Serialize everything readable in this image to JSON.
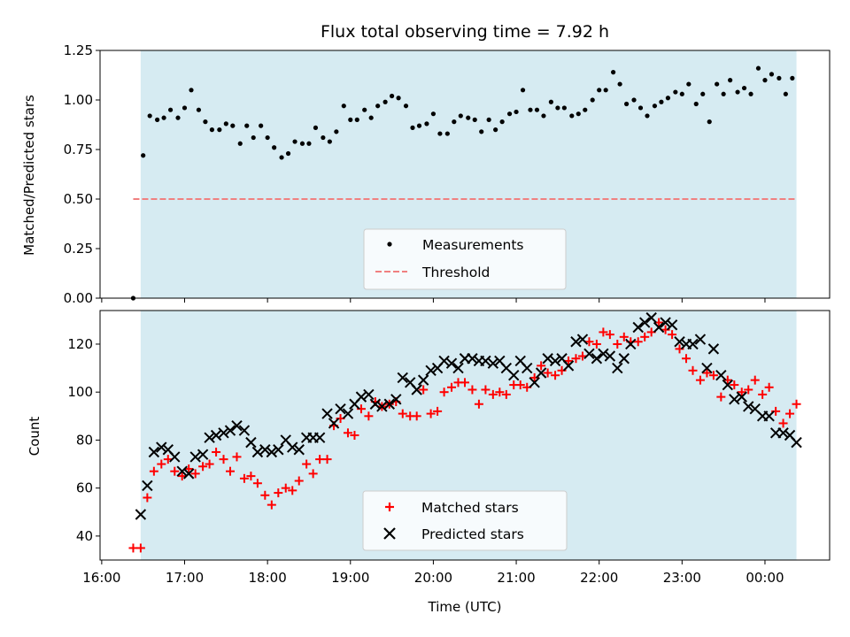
{
  "chart_data": [
    {
      "type": "scatter",
      "title": "Flux total observing time = 7.92 h",
      "xlabel": "",
      "ylabel": "Matched/Predicted stars",
      "ylim": [
        0,
        1.25
      ],
      "yticks": [
        0.0,
        0.25,
        0.5,
        0.75,
        1.0,
        1.25
      ],
      "ytick_labels": [
        "0.00",
        "0.25",
        "0.50",
        "0.75",
        "1.00",
        "1.25"
      ],
      "xlim_hours": [
        15.98,
        24.78
      ],
      "observing_window_hours": [
        16.47,
        24.38
      ],
      "observing_window_color": "#add8e6",
      "legend": {
        "placement": "lower center",
        "entries": [
          "Measurements",
          "Threshold"
        ]
      },
      "series": [
        {
          "name": "Measurements",
          "color": "#000000",
          "marker": "dot",
          "x": [
            16.38,
            16.5,
            16.58,
            16.67,
            16.75,
            16.83,
            16.92,
            17.0,
            17.08,
            17.17,
            17.25,
            17.33,
            17.42,
            17.5,
            17.58,
            17.67,
            17.75,
            17.83,
            17.92,
            18.0,
            18.08,
            18.17,
            18.25,
            18.33,
            18.42,
            18.5,
            18.58,
            18.67,
            18.75,
            18.83,
            18.92,
            19.0,
            19.08,
            19.17,
            19.25,
            19.33,
            19.42,
            19.5,
            19.58,
            19.67,
            19.75,
            19.83,
            19.92,
            20.0,
            20.08,
            20.17,
            20.25,
            20.33,
            20.42,
            20.5,
            20.58,
            20.67,
            20.75,
            20.83,
            20.92,
            21.0,
            21.08,
            21.17,
            21.25,
            21.33,
            21.42,
            21.5,
            21.58,
            21.67,
            21.75,
            21.83,
            21.92,
            22.0,
            22.08,
            22.17,
            22.25,
            22.33,
            22.42,
            22.5,
            22.58,
            22.67,
            22.75,
            22.83,
            22.92,
            23.0,
            23.08,
            23.17,
            23.25,
            23.33,
            23.42,
            23.5,
            23.58,
            23.67,
            23.75,
            23.83,
            23.92,
            24.0,
            24.08,
            24.17,
            24.25,
            24.33
          ],
          "y": [
            0.0,
            0.72,
            0.92,
            0.9,
            0.91,
            0.95,
            0.91,
            0.96,
            1.05,
            0.95,
            0.89,
            0.85,
            0.85,
            0.88,
            0.87,
            0.78,
            0.87,
            0.81,
            0.87,
            0.81,
            0.76,
            0.71,
            0.73,
            0.79,
            0.78,
            0.78,
            0.86,
            0.81,
            0.79,
            0.84,
            0.97,
            0.9,
            0.9,
            0.95,
            0.91,
            0.97,
            0.99,
            1.02,
            1.01,
            0.97,
            0.86,
            0.87,
            0.88,
            0.93,
            0.83,
            0.83,
            0.89,
            0.92,
            0.91,
            0.9,
            0.84,
            0.9,
            0.85,
            0.89,
            0.93,
            0.94,
            1.05,
            0.95,
            0.95,
            0.92,
            0.99,
            0.96,
            0.96,
            0.92,
            0.93,
            0.95,
            1.0,
            1.05,
            1.05,
            1.14,
            1.08,
            0.98,
            1.0,
            0.96,
            0.92,
            0.97,
            0.99,
            1.01,
            1.04,
            1.03,
            1.08,
            0.98,
            1.03,
            0.89,
            1.08,
            1.03,
            1.1,
            1.04,
            1.06,
            1.03,
            1.16,
            1.1,
            1.13,
            1.11,
            1.03,
            1.11
          ]
        },
        {
          "name": "Threshold",
          "color": "#f08080",
          "line_style": "dashed",
          "x": [
            16.38,
            24.38
          ],
          "y": [
            0.5,
            0.5
          ]
        }
      ]
    },
    {
      "type": "scatter",
      "title": "",
      "xlabel": "Time (UTC)",
      "ylabel": "Count",
      "ylim": [
        30,
        134
      ],
      "yticks": [
        40,
        60,
        80,
        100,
        120
      ],
      "ytick_labels": [
        "40",
        "60",
        "80",
        "100",
        "120"
      ],
      "xticks_hours": [
        16,
        17,
        18,
        19,
        20,
        21,
        22,
        23,
        24
      ],
      "xtick_labels": [
        "16:00",
        "17:00",
        "18:00",
        "19:00",
        "20:00",
        "21:00",
        "22:00",
        "23:00",
        "00:00"
      ],
      "xlim_hours": [
        15.98,
        24.78
      ],
      "observing_window_hours": [
        16.47,
        24.38
      ],
      "observing_window_color": "#add8e6",
      "legend": {
        "placement": "lower center",
        "entries": [
          "Matched stars",
          "Predicted stars"
        ]
      },
      "series": [
        {
          "name": "Matched stars",
          "color": "#ff0000",
          "marker": "plus",
          "x": [
            16.38,
            16.47,
            16.55,
            16.63,
            16.72,
            16.8,
            16.88,
            16.97,
            17.05,
            17.13,
            17.22,
            17.3,
            17.38,
            17.47,
            17.55,
            17.63,
            17.72,
            17.8,
            17.88,
            17.97,
            18.05,
            18.13,
            18.22,
            18.3,
            18.38,
            18.47,
            18.55,
            18.63,
            18.72,
            18.8,
            18.88,
            18.97,
            19.05,
            19.13,
            19.22,
            19.3,
            19.38,
            19.47,
            19.55,
            19.63,
            19.72,
            19.8,
            19.88,
            19.97,
            20.05,
            20.13,
            20.22,
            20.3,
            20.38,
            20.47,
            20.55,
            20.63,
            20.72,
            20.8,
            20.88,
            20.97,
            21.05,
            21.13,
            21.22,
            21.3,
            21.38,
            21.47,
            21.55,
            21.63,
            21.72,
            21.8,
            21.88,
            21.97,
            22.05,
            22.13,
            22.22,
            22.3,
            22.38,
            22.47,
            22.55,
            22.63,
            22.72,
            22.8,
            22.88,
            22.97,
            23.05,
            23.13,
            23.22,
            23.3,
            23.38,
            23.47,
            23.55,
            23.63,
            23.72,
            23.8,
            23.88,
            23.97,
            24.05,
            24.13,
            24.22,
            24.3,
            24.38
          ],
          "y": [
            35,
            35,
            56,
            67,
            70,
            72,
            67,
            65,
            68,
            66,
            69,
            70,
            75,
            72,
            67,
            73,
            64,
            65,
            62,
            57,
            53,
            58,
            60,
            59,
            63,
            70,
            66,
            72,
            72,
            86,
            89,
            83,
            82,
            93,
            90,
            96,
            94,
            95,
            96,
            91,
            90,
            90,
            101,
            91,
            92,
            100,
            102,
            104,
            104,
            101,
            95,
            101,
            99,
            100,
            99,
            103,
            103,
            102,
            106,
            111,
            108,
            107,
            109,
            113,
            114,
            115,
            121,
            120,
            125,
            124,
            120,
            123,
            121,
            121,
            123,
            125,
            129,
            126,
            124,
            118,
            114,
            109,
            105,
            108,
            107,
            98,
            105,
            103,
            100,
            101,
            105,
            99,
            102,
            92,
            87,
            91,
            95
          ]
        },
        {
          "name": "Predicted stars",
          "color": "#000000",
          "marker": "x",
          "x": [
            16.47,
            16.55,
            16.63,
            16.72,
            16.8,
            16.88,
            16.97,
            17.05,
            17.13,
            17.22,
            17.3,
            17.38,
            17.47,
            17.55,
            17.63,
            17.72,
            17.8,
            17.88,
            17.97,
            18.05,
            18.13,
            18.22,
            18.3,
            18.38,
            18.47,
            18.55,
            18.63,
            18.72,
            18.8,
            18.88,
            18.97,
            19.05,
            19.13,
            19.22,
            19.3,
            19.38,
            19.47,
            19.55,
            19.63,
            19.72,
            19.8,
            19.88,
            19.97,
            20.05,
            20.13,
            20.22,
            20.3,
            20.38,
            20.47,
            20.55,
            20.63,
            20.72,
            20.8,
            20.88,
            20.97,
            21.05,
            21.13,
            21.22,
            21.3,
            21.38,
            21.47,
            21.55,
            21.63,
            21.72,
            21.8,
            21.88,
            21.97,
            22.05,
            22.13,
            22.22,
            22.3,
            22.38,
            22.47,
            22.55,
            22.63,
            22.72,
            22.8,
            22.88,
            22.97,
            23.05,
            23.13,
            23.22,
            23.3,
            23.38,
            23.47,
            23.55,
            23.63,
            23.72,
            23.8,
            23.88,
            23.97,
            24.05,
            24.13,
            24.22,
            24.3,
            24.38
          ],
          "y": [
            49,
            61,
            75,
            77,
            76,
            73,
            67,
            66,
            73,
            74,
            81,
            82,
            83,
            84,
            86,
            84,
            79,
            75,
            76,
            75,
            76,
            80,
            77,
            76,
            81,
            81,
            81,
            91,
            87,
            93,
            91,
            95,
            98,
            99,
            95,
            94,
            95,
            97,
            106,
            104,
            101,
            105,
            109,
            110,
            113,
            112,
            110,
            114,
            114,
            113,
            113,
            112,
            113,
            110,
            107,
            113,
            110,
            104,
            108,
            114,
            113,
            114,
            111,
            121,
            122,
            116,
            114,
            116,
            115,
            110,
            114,
            120,
            127,
            129,
            131,
            127,
            129,
            128,
            121,
            120,
            120,
            122,
            110,
            118,
            107,
            103,
            97,
            98,
            94,
            93,
            90,
            90,
            83,
            83,
            82,
            79
          ]
        }
      ]
    }
  ]
}
